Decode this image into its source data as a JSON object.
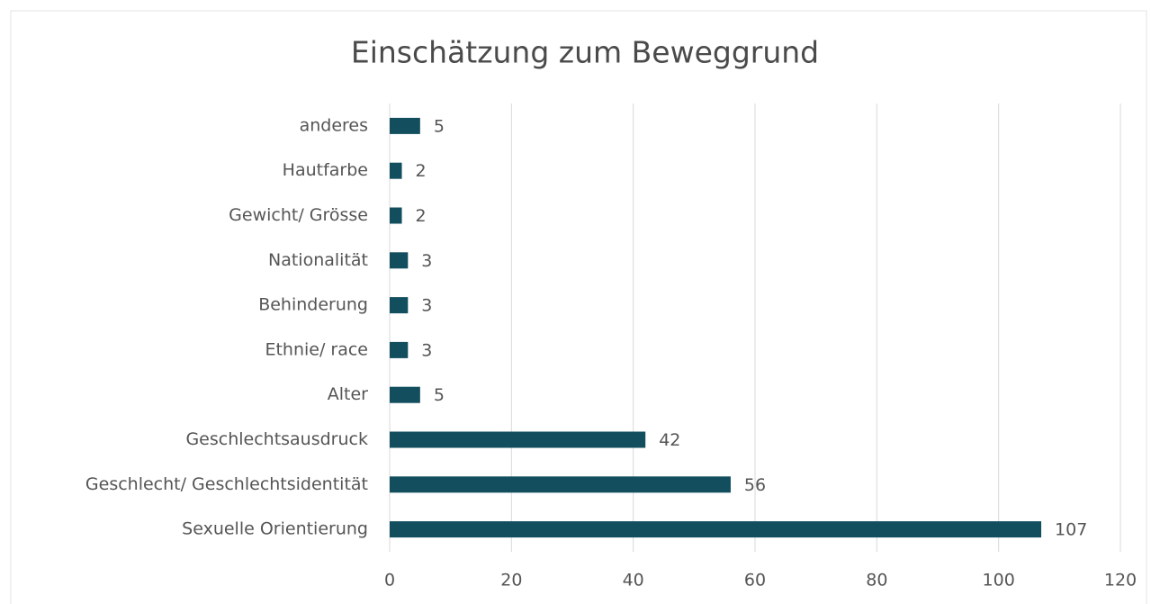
{
  "chart_data": {
    "type": "barh",
    "title": "Einschätzung zum Beweggrund",
    "categories": [
      "anderes",
      "Hautfarbe",
      "Gewicht/ Grösse",
      "Nationalität",
      "Behinderung",
      "Ethnie/ race",
      "Alter",
      "Geschlechtsausdruck",
      "Geschlecht/ Geschlechtsidentität",
      "Sexuelle Orientierung"
    ],
    "values": [
      5,
      2,
      2,
      3,
      3,
      3,
      5,
      42,
      56,
      107
    ],
    "color": "#124e5e",
    "xlim": [
      0,
      120
    ],
    "xticks": [
      0,
      20,
      40,
      60,
      80,
      100,
      120
    ],
    "grid": true
  }
}
